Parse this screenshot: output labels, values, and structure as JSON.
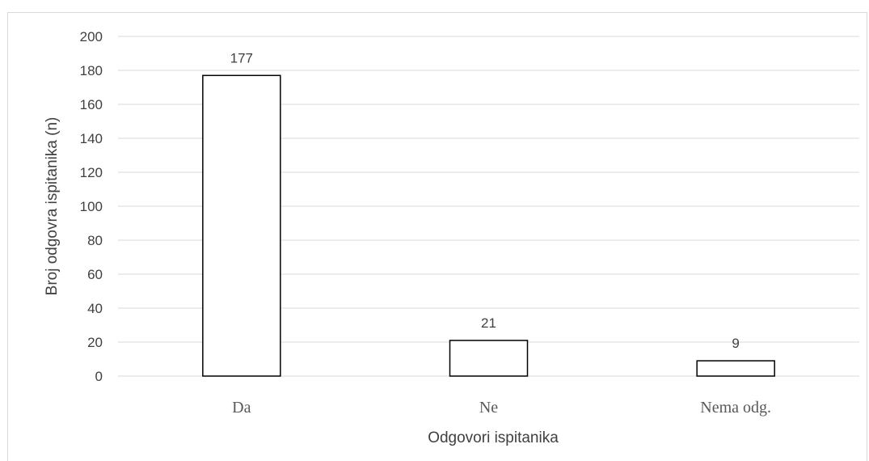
{
  "chart_data": {
    "type": "bar",
    "title": "",
    "xlabel": "Odgovori ispitanika",
    "ylabel": "Broj odgovra ispitanika (n)",
    "categories": [
      "Da",
      "Ne",
      "Nema odg."
    ],
    "values": [
      177,
      21,
      9
    ],
    "data_labels": [
      "177",
      "21",
      "9"
    ],
    "ylim": [
      0,
      200
    ],
    "yticks": [
      0,
      20,
      40,
      60,
      80,
      100,
      120,
      140,
      160,
      180,
      200
    ],
    "grid": true,
    "legend": "none",
    "colors": {
      "bar_fill": "#ffffff",
      "bar_stroke": "#000000",
      "grid": "#d9d9d9",
      "text": "#404040"
    }
  }
}
